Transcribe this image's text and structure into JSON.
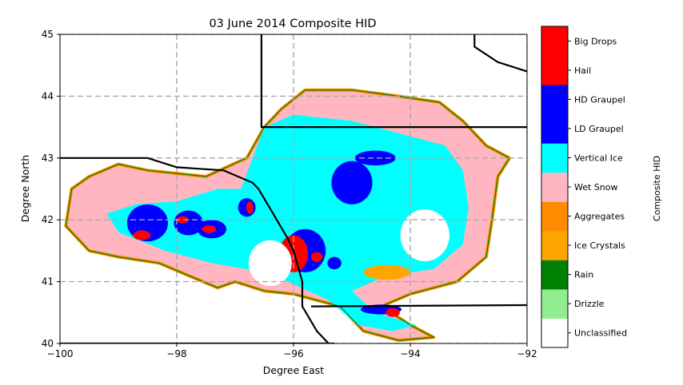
{
  "chart_data": {
    "type": "heatmap",
    "title": "03 June 2014 Composite HID",
    "xlabel": "Degree East",
    "ylabel": "Degree North",
    "xlim": [
      -100,
      -92
    ],
    "ylim": [
      40,
      45
    ],
    "x_ticks": [
      -100,
      -98,
      -96,
      -94,
      -92
    ],
    "y_ticks": [
      40,
      41,
      42,
      43,
      44,
      45
    ],
    "x_tick_labels": [
      "−100",
      "−98",
      "−96",
      "−94",
      "−92"
    ],
    "y_tick_labels": [
      "40",
      "41",
      "42",
      "43",
      "44",
      "45"
    ],
    "grid": true,
    "colorbar": {
      "label": "Composite HID",
      "classes": [
        {
          "name": "Unclassified",
          "color": "#ffffff"
        },
        {
          "name": "Drizzle",
          "color": "#90ee90"
        },
        {
          "name": "Rain",
          "color": "#008000"
        },
        {
          "name": "Ice Crystals",
          "color": "#ffa500"
        },
        {
          "name": "Aggregates",
          "color": "#ff8c00"
        },
        {
          "name": "Wet Snow",
          "color": "#ffb6c1"
        },
        {
          "name": "Vertical Ice",
          "color": "#00ffff"
        },
        {
          "name": "LD Graupel",
          "color": "#0000ff"
        },
        {
          "name": "HD Graupel",
          "color": "#0000ff"
        },
        {
          "name": "Hail",
          "color": "#ff0000"
        },
        {
          "name": "Big Drops",
          "color": "#ff0000"
        }
      ]
    },
    "regions": [
      {
        "class": "Wet Snow",
        "points": [
          [
            -99.8,
            42.5
          ],
          [
            -99.5,
            42.7
          ],
          [
            -99.0,
            42.9
          ],
          [
            -98.5,
            42.8
          ],
          [
            -97.5,
            42.7
          ],
          [
            -96.8,
            43.0
          ],
          [
            -96.5,
            43.5
          ],
          [
            -96.2,
            43.8
          ],
          [
            -95.8,
            44.1
          ],
          [
            -95.0,
            44.1
          ],
          [
            -94.2,
            44.0
          ],
          [
            -93.5,
            43.9
          ],
          [
            -93.1,
            43.6
          ],
          [
            -92.7,
            43.2
          ],
          [
            -92.3,
            43.0
          ],
          [
            -92.5,
            42.7
          ],
          [
            -92.6,
            42.0
          ],
          [
            -92.7,
            41.4
          ],
          [
            -93.2,
            41.0
          ],
          [
            -94.0,
            40.8
          ],
          [
            -94.5,
            40.6
          ],
          [
            -94.0,
            40.3
          ],
          [
            -93.6,
            40.1
          ],
          [
            -94.2,
            40.05
          ],
          [
            -94.8,
            40.2
          ],
          [
            -95.2,
            40.6
          ],
          [
            -96.0,
            40.8
          ],
          [
            -96.5,
            40.85
          ],
          [
            -97.0,
            41.0
          ],
          [
            -97.3,
            40.9
          ],
          [
            -97.8,
            41.1
          ],
          [
            -98.3,
            41.3
          ],
          [
            -99.0,
            41.4
          ],
          [
            -99.5,
            41.5
          ],
          [
            -99.9,
            41.9
          ]
        ]
      },
      {
        "class": "Vertical Ice",
        "points": [
          [
            -98.7,
            42.25
          ],
          [
            -98.0,
            42.3
          ],
          [
            -97.3,
            42.5
          ],
          [
            -96.9,
            42.5
          ],
          [
            -96.7,
            43.0
          ],
          [
            -96.5,
            43.5
          ],
          [
            -96.0,
            43.7
          ],
          [
            -95.0,
            43.6
          ],
          [
            -94.2,
            43.4
          ],
          [
            -93.4,
            43.2
          ],
          [
            -93.1,
            42.8
          ],
          [
            -93.0,
            42.2
          ],
          [
            -93.1,
            41.6
          ],
          [
            -93.6,
            41.2
          ],
          [
            -94.4,
            41.1
          ],
          [
            -95.0,
            40.85
          ],
          [
            -94.6,
            40.5
          ],
          [
            -93.9,
            40.3
          ],
          [
            -94.3,
            40.2
          ],
          [
            -94.9,
            40.3
          ],
          [
            -95.4,
            40.7
          ],
          [
            -96.1,
            41.0
          ],
          [
            -96.8,
            41.2
          ],
          [
            -97.4,
            41.3
          ],
          [
            -98.2,
            41.5
          ],
          [
            -99.0,
            41.8
          ],
          [
            -99.2,
            42.1
          ]
        ]
      }
    ],
    "cells": [
      {
        "class": "LD Graupel",
        "lon": -95.0,
        "lat": 42.6,
        "rx": 0.35,
        "ry": 0.35
      },
      {
        "class": "LD Graupel",
        "lon": -94.6,
        "lat": 43.0,
        "rx": 0.35,
        "ry": 0.12
      },
      {
        "class": "LD Graupel",
        "lon": -98.5,
        "lat": 41.95,
        "rx": 0.35,
        "ry": 0.3
      },
      {
        "class": "LD Graupel",
        "lon": -97.8,
        "lat": 41.95,
        "rx": 0.25,
        "ry": 0.2
      },
      {
        "class": "LD Graupel",
        "lon": -97.4,
        "lat": 41.85,
        "rx": 0.25,
        "ry": 0.15
      },
      {
        "class": "LD Graupel",
        "lon": -96.8,
        "lat": 42.2,
        "rx": 0.15,
        "ry": 0.15
      },
      {
        "class": "LD Graupel",
        "lon": -95.8,
        "lat": 41.5,
        "rx": 0.35,
        "ry": 0.35
      },
      {
        "class": "LD Graupel",
        "lon": -94.5,
        "lat": 40.55,
        "rx": 0.35,
        "ry": 0.08
      },
      {
        "class": "LD Graupel",
        "lon": -95.3,
        "lat": 41.3,
        "rx": 0.12,
        "ry": 0.1
      },
      {
        "class": "Hail",
        "lon": -98.6,
        "lat": 41.75,
        "rx": 0.15,
        "ry": 0.08
      },
      {
        "class": "Hail",
        "lon": -97.9,
        "lat": 42.0,
        "rx": 0.1,
        "ry": 0.06
      },
      {
        "class": "Hail",
        "lon": -97.45,
        "lat": 41.85,
        "rx": 0.12,
        "ry": 0.06
      },
      {
        "class": "Hail",
        "lon": -96.75,
        "lat": 42.2,
        "rx": 0.06,
        "ry": 0.1
      },
      {
        "class": "Hail",
        "lon": -96.0,
        "lat": 41.45,
        "rx": 0.25,
        "ry": 0.3
      },
      {
        "class": "Hail",
        "lon": -95.6,
        "lat": 41.4,
        "rx": 0.1,
        "ry": 0.08
      },
      {
        "class": "Hail",
        "lon": -94.3,
        "lat": 40.5,
        "rx": 0.12,
        "ry": 0.07
      },
      {
        "class": "Ice Crystals",
        "lon": -94.4,
        "lat": 41.15,
        "rx": 0.4,
        "ry": 0.12
      }
    ],
    "no_data_circles": [
      {
        "lon": -96.4,
        "lat": 41.3,
        "r": 0.37
      },
      {
        "lon": -93.75,
        "lat": 41.75,
        "r": 0.42
      }
    ],
    "boundaries": [
      [
        [
          -100,
          43.0
        ],
        [
          -98.5,
          43.0
        ],
        [
          -98.0,
          42.85
        ],
        [
          -97.2,
          42.8
        ],
        [
          -96.7,
          42.6
        ],
        [
          -96.6,
          42.5
        ],
        [
          -96.35,
          42.1
        ],
        [
          -96.1,
          41.7
        ],
        [
          -96.0,
          41.5
        ],
        [
          -95.85,
          41.0
        ],
        [
          -95.85,
          40.6
        ],
        [
          -95.6,
          40.2
        ],
        [
          -95.4,
          40.0
        ]
      ],
      [
        [
          -96.55,
          45.0
        ],
        [
          -96.55,
          43.5
        ],
        [
          -92,
          43.5
        ]
      ],
      [
        [
          -100,
          40.0
        ],
        [
          -95.3,
          40.0
        ]
      ],
      [
        [
          -95.7,
          40.6
        ],
        [
          -92,
          40.62
        ]
      ],
      [
        [
          -92.9,
          45.0
        ],
        [
          -92.9,
          44.8
        ],
        [
          -92.5,
          44.55
        ],
        [
          -92.0,
          44.4
        ]
      ]
    ]
  }
}
